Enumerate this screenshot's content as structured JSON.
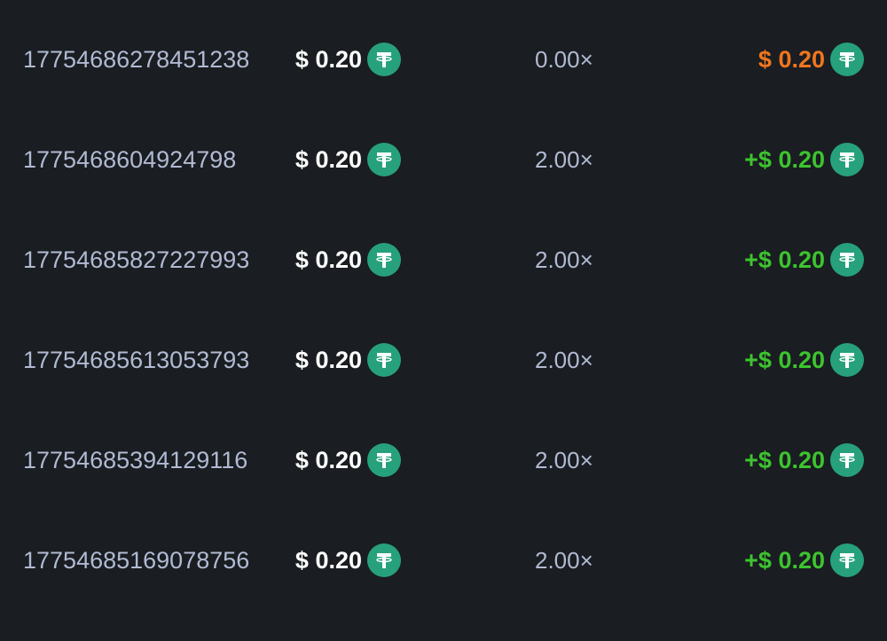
{
  "colors": {
    "background": "#1a1d21",
    "loss": "#f0761e",
    "win": "#3dc42f",
    "coin": "#26a17b",
    "muted": "#b1bad3"
  },
  "currency_icon": "tether-usdt-icon",
  "bets": [
    {
      "id": "17754686278451238",
      "bet": "$ 0.20",
      "multiplier": "0.00×",
      "payout": "$ 0.20",
      "result": "loss"
    },
    {
      "id": "1775468604924798",
      "bet": "$ 0.20",
      "multiplier": "2.00×",
      "payout": "+$ 0.20",
      "result": "win"
    },
    {
      "id": "17754685827227993",
      "bet": "$ 0.20",
      "multiplier": "2.00×",
      "payout": "+$ 0.20",
      "result": "win"
    },
    {
      "id": "17754685613053793",
      "bet": "$ 0.20",
      "multiplier": "2.00×",
      "payout": "+$ 0.20",
      "result": "win"
    },
    {
      "id": "17754685394129116",
      "bet": "$ 0.20",
      "multiplier": "2.00×",
      "payout": "+$ 0.20",
      "result": "win"
    },
    {
      "id": "17754685169078756",
      "bet": "$ 0.20",
      "multiplier": "2.00×",
      "payout": "+$ 0.20",
      "result": "win"
    }
  ]
}
